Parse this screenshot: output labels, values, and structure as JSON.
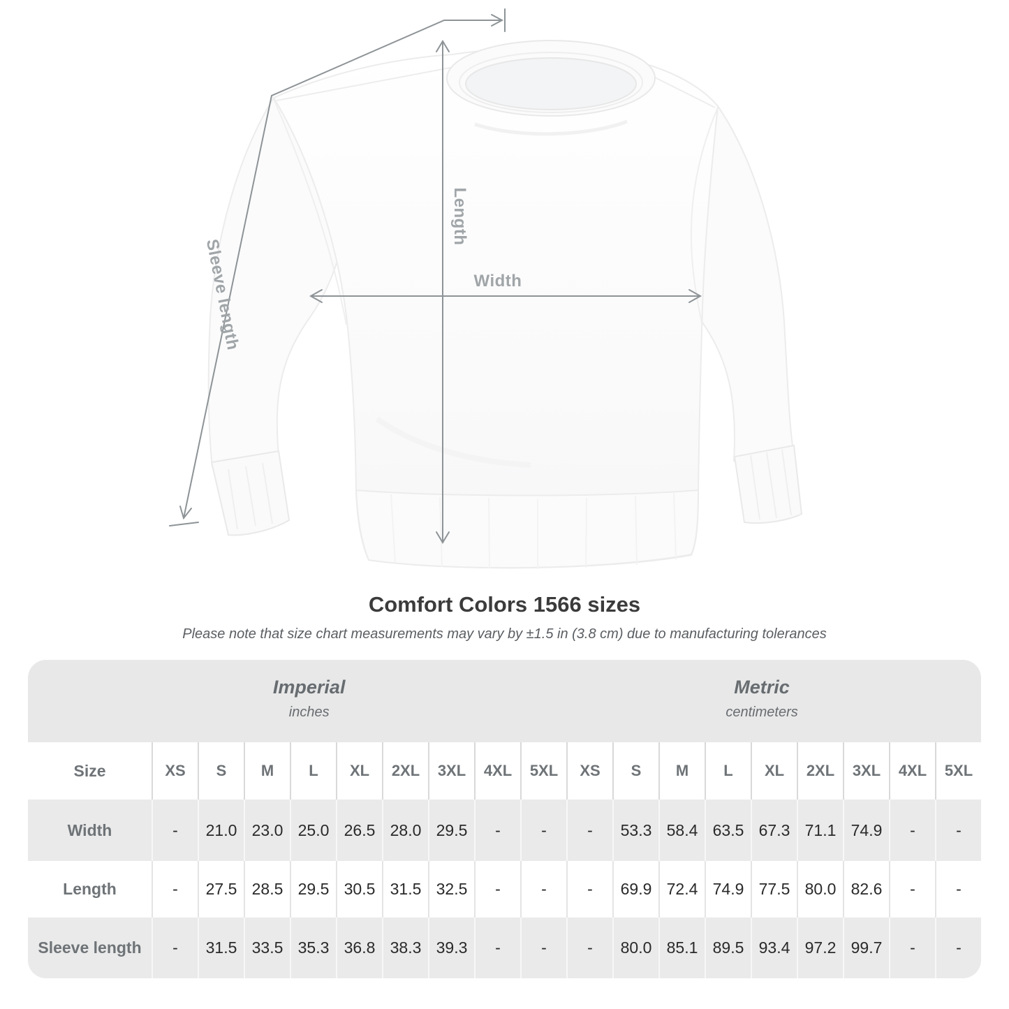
{
  "diagram": {
    "width_label": "Width",
    "length_label": "Length",
    "sleeve_label": "Sleeve length"
  },
  "heading": {
    "title": "Comfort Colors 1566 sizes",
    "note": "Please note that size chart measurements may vary by ±1.5 in (3.8 cm) due to manufacturing tolerances"
  },
  "chart_data": {
    "type": "table",
    "title": "Comfort Colors 1566 sizes",
    "size_col_header": "Size",
    "unit_groups": [
      {
        "label": "Imperial",
        "sublabel": "inches"
      },
      {
        "label": "Metric",
        "sublabel": "centimeters"
      }
    ],
    "sizes": [
      "XS",
      "S",
      "M",
      "L",
      "XL",
      "2XL",
      "3XL",
      "4XL",
      "5XL"
    ],
    "rows": [
      {
        "label": "Width",
        "imperial": [
          "-",
          "21.0",
          "23.0",
          "25.0",
          "26.5",
          "28.0",
          "29.5",
          "-",
          "-"
        ],
        "metric": [
          "-",
          "53.3",
          "58.4",
          "63.5",
          "67.3",
          "71.1",
          "74.9",
          "-",
          "-"
        ]
      },
      {
        "label": "Length",
        "imperial": [
          "-",
          "27.5",
          "28.5",
          "29.5",
          "30.5",
          "31.5",
          "32.5",
          "-",
          "-"
        ],
        "metric": [
          "-",
          "69.9",
          "72.4",
          "74.9",
          "77.5",
          "80.0",
          "82.6",
          "-",
          "-"
        ]
      },
      {
        "label": "Sleeve length",
        "imperial": [
          "-",
          "31.5",
          "33.5",
          "35.3",
          "36.8",
          "38.3",
          "39.3",
          "-",
          "-"
        ],
        "metric": [
          "-",
          "80.0",
          "85.1",
          "89.5",
          "93.4",
          "97.2",
          "99.7",
          "-",
          "-"
        ]
      }
    ]
  },
  "colors": {
    "band_background": "#e8e8e8",
    "row_gray_background": "#eaeaea",
    "measure_line": "#8d9396",
    "label_gray": "#6e7377"
  }
}
